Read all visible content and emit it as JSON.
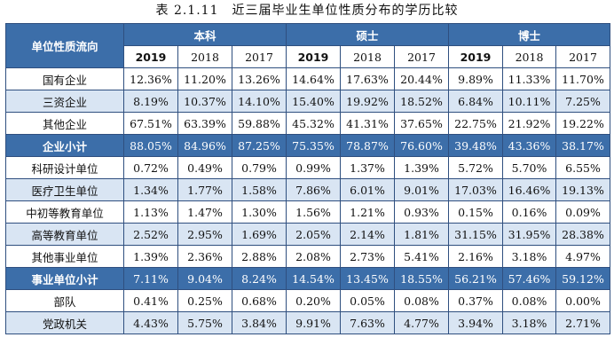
{
  "title": "表 2.1.11　近三届毕业生单位性质分布的学历比较",
  "corner_label": "单位性质流向",
  "groups": [
    "本科",
    "硕士",
    "博士"
  ],
  "years": [
    "2019",
    "2018",
    "2017",
    "2019",
    "2018",
    "2017",
    "2019",
    "2018",
    "2017"
  ],
  "rows": [
    {
      "label": "国有企业",
      "style": "white",
      "values": [
        "12.36%",
        "11.20%",
        "13.26%",
        "14.64%",
        "17.63%",
        "20.44%",
        "9.89%",
        "11.33%",
        "11.70%"
      ]
    },
    {
      "label": "三资企业",
      "style": "light",
      "values": [
        "8.19%",
        "10.37%",
        "14.10%",
        "15.40%",
        "19.92%",
        "18.52%",
        "6.84%",
        "10.11%",
        "7.25%"
      ]
    },
    {
      "label": "其他企业",
      "style": "white",
      "values": [
        "67.51%",
        "63.39%",
        "59.88%",
        "45.32%",
        "41.31%",
        "37.65%",
        "22.75%",
        "21.92%",
        "19.22%"
      ]
    },
    {
      "label": "企业小计",
      "style": "sub",
      "values": [
        "88.05%",
        "84.96%",
        "87.25%",
        "75.35%",
        "78.87%",
        "76.60%",
        "39.48%",
        "43.36%",
        "38.17%"
      ]
    },
    {
      "label": "科研设计单位",
      "style": "white",
      "values": [
        "0.72%",
        "0.49%",
        "0.79%",
        "0.99%",
        "1.37%",
        "1.39%",
        "5.72%",
        "5.70%",
        "6.55%"
      ]
    },
    {
      "label": "医疗卫生单位",
      "style": "light",
      "values": [
        "1.34%",
        "1.77%",
        "1.58%",
        "7.86%",
        "6.01%",
        "9.01%",
        "17.03%",
        "16.46%",
        "19.13%"
      ]
    },
    {
      "label": "中初等教育单位",
      "style": "white",
      "values": [
        "1.13%",
        "1.47%",
        "1.30%",
        "1.56%",
        "1.21%",
        "0.93%",
        "0.15%",
        "0.16%",
        "0.09%"
      ]
    },
    {
      "label": "高等教育单位",
      "style": "light",
      "values": [
        "2.52%",
        "2.95%",
        "1.69%",
        "2.05%",
        "2.14%",
        "1.81%",
        "31.15%",
        "31.95%",
        "28.38%"
      ]
    },
    {
      "label": "其他事业单位",
      "style": "white",
      "values": [
        "1.39%",
        "2.36%",
        "2.88%",
        "2.08%",
        "2.73%",
        "5.41%",
        "2.16%",
        "3.18%",
        "4.97%"
      ]
    },
    {
      "label": "事业单位小计",
      "style": "sub",
      "values": [
        "7.11%",
        "9.04%",
        "8.24%",
        "14.54%",
        "13.45%",
        "18.55%",
        "56.21%",
        "57.46%",
        "59.12%"
      ]
    },
    {
      "label": "部队",
      "style": "white",
      "values": [
        "0.41%",
        "0.25%",
        "0.68%",
        "0.20%",
        "0.05%",
        "0.08%",
        "0.37%",
        "0.08%",
        "0.00%"
      ]
    },
    {
      "label": "党政机关",
      "style": "light",
      "values": [
        "4.43%",
        "5.75%",
        "3.84%",
        "9.91%",
        "7.63%",
        "4.77%",
        "3.94%",
        "3.18%",
        "2.71%"
      ]
    }
  ],
  "colors": {
    "header_bg": "#3c6ea9",
    "row_light": "#d9e5f3",
    "border": "#2f4f7f"
  }
}
